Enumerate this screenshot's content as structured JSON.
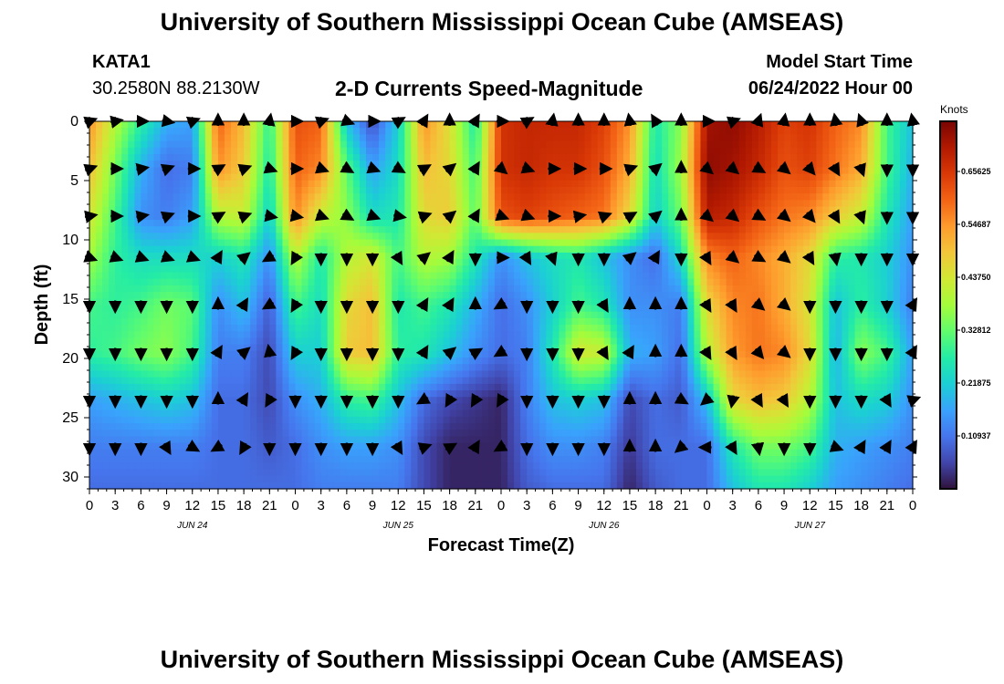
{
  "header": {
    "title": "University of Southern Mississippi Ocean Cube (AMSEAS)",
    "station": "KATA1",
    "coords": "30.2580N  88.2130W",
    "subtitle": "2-D Currents Speed-Magnitude",
    "model_start_label": "Model Start Time",
    "model_start_date": "06/24/2022 Hour 00"
  },
  "footer": {
    "title": "University of Southern Mississippi Ocean Cube (AMSEAS)"
  },
  "chart_data": {
    "type": "heatmap",
    "title": "2-D Currents Speed-Magnitude",
    "xlabel": "Forecast Time(Z)",
    "ylabel": "Depth (ft)",
    "x_hours": [
      0,
      96
    ],
    "x_tick_step_hours": 3,
    "x_tick_labels": [
      "0",
      "3",
      "6",
      "9",
      "12",
      "15",
      "18",
      "21",
      "0",
      "3",
      "6",
      "9",
      "12",
      "15",
      "18",
      "21",
      "0",
      "3",
      "6",
      "9",
      "12",
      "15",
      "18",
      "21",
      "0",
      "3",
      "6",
      "9",
      "12",
      "15",
      "18",
      "21",
      "0"
    ],
    "date_labels": [
      {
        "label": "JUN 24",
        "hour": 12
      },
      {
        "label": "JUN 25",
        "hour": 36
      },
      {
        "label": "JUN 26",
        "hour": 60
      },
      {
        "label": "JUN 27",
        "hour": 84
      }
    ],
    "y_range_ft": [
      0,
      31
    ],
    "y_ticks": [
      "0",
      "5",
      "10",
      "15",
      "20",
      "25",
      "30"
    ],
    "colorbar": {
      "title": "Knots",
      "range": [
        0,
        0.76
      ],
      "tick_labels": [
        "0.10937",
        "0.21875",
        "0.32812",
        "0.43750",
        "0.54687",
        "0.65625"
      ],
      "colors": [
        "#30123b",
        "#4145ab",
        "#4675ed",
        "#39a2fc",
        "#1bcfd4",
        "#24eca6",
        "#61fc6c",
        "#a4fc3b",
        "#d1e834",
        "#f3c63a",
        "#fe9b2d",
        "#f36315",
        "#d93806",
        "#b11901",
        "#7a0403"
      ]
    },
    "depth_rows_ft": [
      0,
      4,
      8,
      11.5,
      15.5,
      19.5,
      23.5,
      27.5,
      31
    ],
    "time_cols_hours": [
      0,
      3,
      6,
      9,
      12,
      15,
      18,
      21,
      24,
      27,
      30,
      33,
      36,
      39,
      42,
      45,
      48,
      51,
      54,
      57,
      60,
      63,
      66,
      69,
      72,
      75,
      78,
      81,
      84,
      87,
      90,
      93,
      96
    ],
    "speed_knots": [
      [
        0.55,
        0.4,
        0.28,
        0.18,
        0.16,
        0.6,
        0.5,
        0.28,
        0.62,
        0.6,
        0.2,
        0.06,
        0.22,
        0.55,
        0.45,
        0.26,
        0.66,
        0.68,
        0.68,
        0.68,
        0.64,
        0.55,
        0.26,
        0.36,
        0.72,
        0.74,
        0.7,
        0.64,
        0.66,
        0.6,
        0.56,
        0.3,
        0.2
      ],
      [
        0.5,
        0.34,
        0.18,
        0.1,
        0.12,
        0.55,
        0.48,
        0.26,
        0.6,
        0.56,
        0.32,
        0.16,
        0.24,
        0.5,
        0.46,
        0.3,
        0.66,
        0.68,
        0.66,
        0.66,
        0.62,
        0.52,
        0.24,
        0.38,
        0.74,
        0.72,
        0.68,
        0.62,
        0.64,
        0.58,
        0.52,
        0.3,
        0.18
      ],
      [
        0.44,
        0.3,
        0.14,
        0.12,
        0.16,
        0.4,
        0.42,
        0.22,
        0.56,
        0.42,
        0.36,
        0.24,
        0.26,
        0.46,
        0.48,
        0.32,
        0.62,
        0.64,
        0.62,
        0.6,
        0.58,
        0.46,
        0.22,
        0.34,
        0.7,
        0.68,
        0.62,
        0.58,
        0.56,
        0.48,
        0.42,
        0.26,
        0.16
      ],
      [
        0.38,
        0.28,
        0.24,
        0.24,
        0.24,
        0.22,
        0.26,
        0.14,
        0.4,
        0.26,
        0.4,
        0.44,
        0.3,
        0.4,
        0.38,
        0.26,
        0.14,
        0.2,
        0.24,
        0.26,
        0.2,
        0.14,
        0.1,
        0.24,
        0.56,
        0.6,
        0.56,
        0.52,
        0.46,
        0.28,
        0.26,
        0.22,
        0.14
      ],
      [
        0.3,
        0.28,
        0.3,
        0.34,
        0.32,
        0.14,
        0.2,
        0.08,
        0.3,
        0.24,
        0.46,
        0.5,
        0.26,
        0.3,
        0.26,
        0.18,
        0.1,
        0.14,
        0.22,
        0.3,
        0.26,
        0.14,
        0.14,
        0.12,
        0.46,
        0.56,
        0.58,
        0.52,
        0.44,
        0.2,
        0.28,
        0.22,
        0.12
      ],
      [
        0.28,
        0.3,
        0.34,
        0.36,
        0.3,
        0.12,
        0.12,
        0.06,
        0.22,
        0.22,
        0.48,
        0.5,
        0.28,
        0.26,
        0.2,
        0.14,
        0.1,
        0.12,
        0.26,
        0.44,
        0.42,
        0.18,
        0.16,
        0.1,
        0.4,
        0.54,
        0.58,
        0.56,
        0.46,
        0.18,
        0.36,
        0.3,
        0.16
      ],
      [
        0.16,
        0.18,
        0.2,
        0.22,
        0.2,
        0.1,
        0.1,
        0.06,
        0.14,
        0.18,
        0.28,
        0.3,
        0.2,
        0.1,
        0.06,
        0.04,
        0.02,
        0.12,
        0.2,
        0.22,
        0.2,
        0.06,
        0.1,
        0.08,
        0.2,
        0.46,
        0.5,
        0.48,
        0.4,
        0.2,
        0.24,
        0.22,
        0.14
      ],
      [
        0.12,
        0.12,
        0.12,
        0.12,
        0.12,
        0.1,
        0.1,
        0.08,
        0.1,
        0.14,
        0.16,
        0.16,
        0.14,
        0.06,
        0.02,
        0.02,
        0.02,
        0.1,
        0.14,
        0.14,
        0.12,
        0.04,
        0.1,
        0.1,
        0.1,
        0.26,
        0.34,
        0.34,
        0.3,
        0.18,
        0.16,
        0.14,
        0.12
      ],
      [
        0.1,
        0.1,
        0.1,
        0.1,
        0.1,
        0.1,
        0.1,
        0.1,
        0.1,
        0.12,
        0.12,
        0.12,
        0.12,
        0.06,
        0.02,
        0.02,
        0.02,
        0.08,
        0.1,
        0.1,
        0.1,
        0.02,
        0.08,
        0.1,
        0.1,
        0.2,
        0.26,
        0.26,
        0.22,
        0.16,
        0.14,
        0.12,
        0.1
      ]
    ],
    "arrow_rows_ft": [
      0,
      4,
      8,
      11.5,
      15.5,
      19.5,
      23.5,
      27.5
    ],
    "arrow_angles_deg": [
      [
        20,
        10,
        0,
        350,
        20,
        90,
        90,
        80,
        0,
        20,
        340,
        0,
        30,
        60,
        90,
        60,
        0,
        30,
        80,
        90,
        90,
        100,
        120,
        90,
        0,
        20,
        70,
        80,
        90,
        100,
        110,
        90,
        100
      ],
      [
        20,
        0,
        10,
        20,
        0,
        30,
        20,
        -20,
        0,
        -20,
        -30,
        -20,
        -30,
        30,
        40,
        60,
        -40,
        -20,
        0,
        0,
        0,
        20,
        40,
        90,
        -40,
        -40,
        -30,
        -40,
        -50,
        -60,
        -70,
        -90,
        -90
      ],
      [
        10,
        0,
        10,
        20,
        0,
        30,
        20,
        -10,
        -10,
        -20,
        -30,
        -20,
        -10,
        20,
        40,
        60,
        -20,
        -20,
        0,
        10,
        20,
        30,
        40,
        90,
        -40,
        -40,
        -30,
        -40,
        -50,
        -60,
        -70,
        -90,
        -90
      ],
      [
        -20,
        -20,
        -20,
        -20,
        -20,
        60,
        40,
        -150,
        -120,
        -90,
        -90,
        -90,
        -60,
        40,
        60,
        -90,
        0,
        -60,
        -70,
        -90,
        -90,
        40,
        60,
        -90,
        -60,
        -40,
        -30,
        -40,
        -60,
        -80,
        -90,
        -90,
        -90
      ],
      [
        -90,
        -90,
        -90,
        -90,
        -90,
        90,
        60,
        -150,
        -120,
        -90,
        -90,
        -90,
        -90,
        60,
        60,
        90,
        -150,
        -90,
        -90,
        -90,
        -60,
        90,
        90,
        90,
        -60,
        -60,
        -40,
        -40,
        -90,
        -90,
        -90,
        -90,
        60
      ],
      [
        -90,
        -90,
        -90,
        -90,
        -90,
        60,
        40,
        100,
        -120,
        -90,
        -90,
        -90,
        -90,
        60,
        40,
        30,
        -150,
        -90,
        -90,
        -90,
        -60,
        60,
        90,
        90,
        -60,
        -60,
        -50,
        -40,
        -90,
        -90,
        -90,
        -90,
        60
      ],
      [
        -90,
        -90,
        -90,
        -90,
        -90,
        90,
        60,
        -120,
        -90,
        -90,
        -90,
        -90,
        -90,
        -150,
        -120,
        -120,
        -120,
        -90,
        -90,
        -90,
        -90,
        90,
        90,
        -30,
        -140,
        -100,
        -60,
        -60,
        -90,
        -90,
        -90,
        -60,
        20
      ],
      [
        -90,
        -90,
        -90,
        -60,
        -30,
        -150,
        -120,
        -90,
        -90,
        -90,
        -90,
        -90,
        -60,
        20,
        30,
        60,
        -150,
        -90,
        -90,
        -90,
        -90,
        90,
        90,
        -140,
        180,
        -60,
        -80,
        -90,
        -90,
        -20,
        60,
        60,
        60
      ]
    ]
  }
}
